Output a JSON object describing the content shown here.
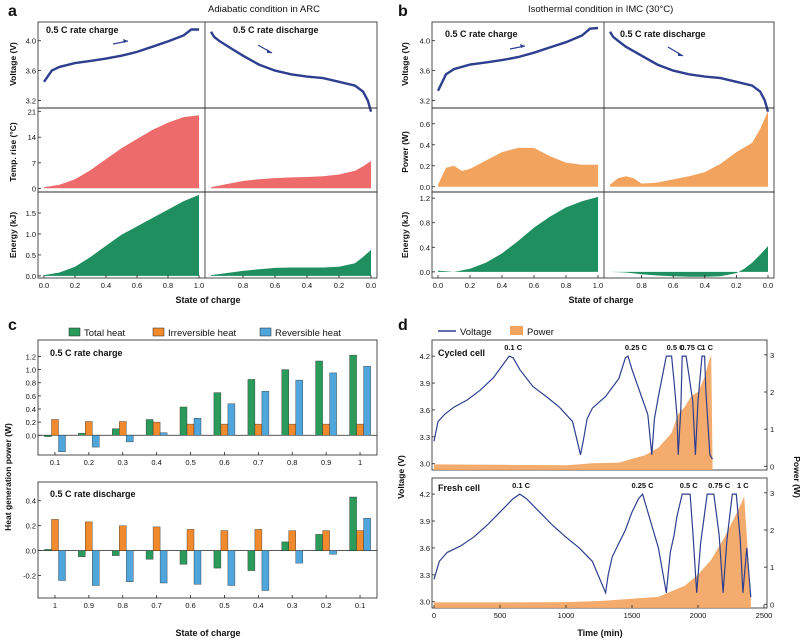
{
  "colors": {
    "voltage": "#2f3f8f",
    "temp": "#ee6b6b",
    "energy": "#1f8f5f",
    "power": "#f2a35e",
    "total": "#2a9b5b",
    "irrev": "#f08a2c",
    "rev": "#4ea6dc"
  },
  "panels": {
    "a": {
      "letter": "a",
      "title": "Adiabatic condition in ARC",
      "charge_label": "0.5 C rate charge",
      "discharge_label": "0.5 C rate discharge",
      "ylabels": [
        "Voltage (V)",
        "Temp. rise (°C)",
        "Energy (kJ)"
      ],
      "xlabel": "State of charge"
    },
    "b": {
      "letter": "b",
      "title": "Isothermal condition in IMC (30°C)",
      "charge_label": "0.5 C rate charge",
      "discharge_label": "0.5 C rate discharge",
      "ylabels": [
        "Voltage (V)",
        "Power (W)",
        "Energy (kJ)"
      ],
      "xlabel": "State of charge"
    },
    "c": {
      "letter": "c",
      "legend": [
        "Total heat",
        "Irreversible heat",
        "Reversible heat"
      ],
      "top_label": "0.5 C rate charge",
      "bottom_label": "0.5 C rate discharge",
      "ylabel": "Heat generation power (W)",
      "xlabel": "State of charge"
    },
    "d": {
      "letter": "d",
      "legend": [
        "Voltage",
        "Power"
      ],
      "top_label": "Cycled cell",
      "bottom_label": "Fresh cell",
      "ylabel_left": "Voltage (V)",
      "ylabel_right": "Power (W)",
      "xlabel": "Time (min)",
      "top_rate_labels": [
        "0.1 C",
        "0.25 C",
        "0.5 C",
        "0.75 C",
        "1 C"
      ],
      "bottom_rate_labels": [
        "0.1 C",
        "0.25 C",
        "0.5 C",
        "0.75 C",
        "1 C"
      ]
    }
  },
  "chart_data": [
    {
      "type": "area",
      "panel": "a",
      "title": "Adiabatic condition in ARC",
      "xlabel": "State of charge",
      "x_ticks_charge": [
        "0.0",
        "0.2",
        "0.4",
        "0.6",
        "0.8",
        "1.0"
      ],
      "x_ticks_discharge": [
        "0.8",
        "0.6",
        "0.4",
        "0.2",
        "0.0"
      ],
      "voltage": {
        "ylabel": "Voltage (V)",
        "ylim": [
          3.1,
          4.25
        ],
        "ticks": [
          "3.2",
          "3.6",
          "4.0"
        ],
        "charge": {
          "soc": [
            0,
            0.05,
            0.1,
            0.2,
            0.3,
            0.4,
            0.5,
            0.6,
            0.7,
            0.8,
            0.9,
            0.95,
            1.0
          ],
          "v": [
            3.45,
            3.6,
            3.65,
            3.7,
            3.73,
            3.76,
            3.8,
            3.85,
            3.92,
            3.99,
            4.07,
            4.15,
            4.15
          ]
        },
        "discharge": {
          "soc": [
            1.0,
            0.98,
            0.95,
            0.9,
            0.8,
            0.7,
            0.6,
            0.5,
            0.4,
            0.3,
            0.2,
            0.1,
            0.05,
            0.02,
            0.0
          ],
          "v": [
            4.12,
            4.05,
            4.0,
            3.93,
            3.8,
            3.68,
            3.6,
            3.55,
            3.52,
            3.5,
            3.45,
            3.4,
            3.32,
            3.2,
            3.05
          ]
        }
      },
      "temp_rise": {
        "ylabel": "Temp. rise (°C)",
        "ylim": [
          -1,
          22
        ],
        "ticks": [
          "0",
          "7",
          "14",
          "21"
        ],
        "charge": {
          "soc": [
            0,
            0.1,
            0.2,
            0.3,
            0.4,
            0.5,
            0.6,
            0.7,
            0.8,
            0.9,
            1.0
          ],
          "t": [
            0.3,
            1,
            2.5,
            5,
            8,
            11,
            13.5,
            16,
            18,
            19.5,
            20
          ]
        },
        "discharge": {
          "soc": [
            1.0,
            0.9,
            0.8,
            0.7,
            0.6,
            0.5,
            0.4,
            0.3,
            0.2,
            0.1,
            0.05,
            0.0
          ],
          "t": [
            0.3,
            1.2,
            2,
            2.5,
            2.8,
            3,
            3.1,
            3.3,
            3.8,
            4.8,
            6,
            7.5
          ]
        }
      },
      "energy": {
        "ylabel": "Energy (kJ)",
        "ylim": [
          -0.05,
          2.0
        ],
        "ticks": [
          "0.0",
          "0.5",
          "1.0",
          "1.5"
        ],
        "charge": {
          "soc": [
            0,
            0.1,
            0.2,
            0.3,
            0.4,
            0.5,
            0.6,
            0.7,
            0.8,
            0.9,
            1.0
          ],
          "e": [
            0.02,
            0.08,
            0.22,
            0.45,
            0.72,
            0.98,
            1.18,
            1.38,
            1.58,
            1.78,
            1.93
          ]
        },
        "discharge": {
          "soc": [
            1.0,
            0.9,
            0.8,
            0.7,
            0.6,
            0.5,
            0.4,
            0.3,
            0.2,
            0.1,
            0.05,
            0.0
          ],
          "e": [
            0.02,
            0.07,
            0.12,
            0.16,
            0.19,
            0.2,
            0.2,
            0.2,
            0.22,
            0.3,
            0.45,
            0.62
          ]
        }
      }
    },
    {
      "type": "area",
      "panel": "b",
      "title": "Isothermal condition in IMC (30°C)",
      "xlabel": "State of charge",
      "x_ticks_charge": [
        "0.0",
        "0.2",
        "0.4",
        "0.6",
        "0.8",
        "1.0"
      ],
      "x_ticks_discharge": [
        "0.8",
        "0.6",
        "0.4",
        "0.2",
        "0.0"
      ],
      "voltage": {
        "ylabel": "Voltage (V)",
        "ylim": [
          3.1,
          4.25
        ],
        "ticks": [
          "3.2",
          "3.6",
          "4.0"
        ],
        "charge": {
          "soc": [
            0,
            0.05,
            0.1,
            0.2,
            0.3,
            0.4,
            0.5,
            0.6,
            0.7,
            0.8,
            0.9,
            0.95,
            1.0
          ],
          "v": [
            3.33,
            3.55,
            3.62,
            3.68,
            3.71,
            3.74,
            3.78,
            3.84,
            3.91,
            3.98,
            4.07,
            4.16,
            4.17
          ]
        },
        "discharge": {
          "soc": [
            1.0,
            0.98,
            0.95,
            0.9,
            0.8,
            0.7,
            0.6,
            0.5,
            0.4,
            0.3,
            0.2,
            0.1,
            0.05,
            0.02,
            0.0
          ],
          "v": [
            4.12,
            4.05,
            4.0,
            3.92,
            3.8,
            3.68,
            3.6,
            3.55,
            3.52,
            3.5,
            3.45,
            3.4,
            3.32,
            3.2,
            3.05
          ]
        }
      },
      "power": {
        "ylabel": "Power (W)",
        "ylim": [
          -0.05,
          0.75
        ],
        "ticks": [
          "0.0",
          "0.2",
          "0.4",
          "0.6"
        ],
        "charge": {
          "soc": [
            0,
            0.05,
            0.1,
            0.15,
            0.2,
            0.3,
            0.4,
            0.5,
            0.6,
            0.7,
            0.8,
            0.9,
            1.0
          ],
          "p": [
            0.02,
            0.18,
            0.2,
            0.15,
            0.17,
            0.25,
            0.33,
            0.37,
            0.37,
            0.29,
            0.23,
            0.21,
            0.21
          ]
        },
        "discharge": {
          "soc": [
            1.0,
            0.95,
            0.9,
            0.85,
            0.8,
            0.7,
            0.6,
            0.5,
            0.4,
            0.3,
            0.2,
            0.1,
            0.05,
            0.0
          ],
          "p": [
            0.02,
            0.08,
            0.1,
            0.08,
            0.03,
            0.04,
            0.07,
            0.1,
            0.14,
            0.22,
            0.33,
            0.42,
            0.55,
            0.72
          ]
        }
      },
      "energy": {
        "ylabel": "Energy (kJ)",
        "ylim": [
          -0.1,
          1.3
        ],
        "ticks": [
          "0.0",
          "0.4",
          "0.8",
          "1.2"
        ],
        "charge": {
          "soc": [
            0,
            0.1,
            0.2,
            0.3,
            0.4,
            0.5,
            0.6,
            0.7,
            0.8,
            0.9,
            1.0
          ],
          "e": [
            0.02,
            0.0,
            0.05,
            0.15,
            0.3,
            0.5,
            0.72,
            0.9,
            1.05,
            1.15,
            1.22
          ]
        },
        "discharge": {
          "soc": [
            1.0,
            0.9,
            0.8,
            0.7,
            0.6,
            0.5,
            0.4,
            0.3,
            0.2,
            0.15,
            0.1,
            0.05,
            0.0
          ],
          "e": [
            0.0,
            -0.01,
            -0.04,
            -0.06,
            -0.07,
            -0.08,
            -0.08,
            -0.07,
            -0.02,
            0.05,
            0.15,
            0.28,
            0.42
          ]
        }
      }
    },
    {
      "type": "bar",
      "panel": "c",
      "ylabel": "Heat generation power (W)",
      "xlabel": "State of charge",
      "series_names": [
        "Total heat",
        "Irreversible heat",
        "Reversible heat"
      ],
      "charge": {
        "label": "0.5 C rate charge",
        "categories": [
          "0.1",
          "0.2",
          "0.3",
          "0.4",
          "0.5",
          "0.6",
          "0.7",
          "0.8",
          "0.9",
          "1"
        ],
        "ylim": [
          -0.3,
          1.45
        ],
        "ticks": [
          "0.0",
          "0.2",
          "0.4",
          "0.6",
          "0.8",
          "1.0",
          "1.2"
        ],
        "series": [
          {
            "name": "Total heat",
            "values": [
              -0.02,
              0.03,
              0.1,
              0.24,
              0.43,
              0.65,
              0.85,
              1.0,
              1.13,
              1.22
            ]
          },
          {
            "name": "Irreversible heat",
            "values": [
              0.24,
              0.21,
              0.21,
              0.2,
              0.17,
              0.17,
              0.17,
              0.17,
              0.17,
              0.17
            ]
          },
          {
            "name": "Reversible heat",
            "values": [
              -0.25,
              -0.18,
              -0.1,
              0.04,
              0.26,
              0.48,
              0.67,
              0.84,
              0.95,
              1.05
            ]
          }
        ]
      },
      "discharge": {
        "label": "0.5 C rate discharge",
        "categories": [
          "1",
          "0.9",
          "0.8",
          "0.7",
          "0.6",
          "0.5",
          "0.4",
          "0.3",
          "0.2",
          "0.1"
        ],
        "ylim": [
          -0.38,
          0.55
        ],
        "ticks": [
          "-0.2",
          "0.0",
          "0.2",
          "0.4"
        ],
        "series": [
          {
            "name": "Total heat",
            "values": [
              0.01,
              -0.05,
              -0.04,
              -0.07,
              -0.11,
              -0.14,
              -0.16,
              0.07,
              0.13,
              0.43
            ]
          },
          {
            "name": "Irreversible heat",
            "values": [
              0.25,
              0.23,
              0.2,
              0.19,
              0.17,
              0.16,
              0.17,
              0.16,
              0.16,
              0.16
            ]
          },
          {
            "name": "Reversible heat",
            "values": [
              -0.24,
              -0.28,
              -0.25,
              -0.26,
              -0.27,
              -0.28,
              -0.32,
              -0.1,
              -0.03,
              0.26
            ]
          }
        ]
      }
    },
    {
      "type": "line",
      "panel": "d",
      "xlabel": "Time (min)",
      "xlim": [
        0,
        2500
      ],
      "x_ticks": [
        "0",
        "500",
        "1000",
        "1500",
        "2000",
        "2500"
      ],
      "ylabel_left": "Voltage (V)",
      "ylabel_right": "Power (W)",
      "v_ticks": [
        "3.0",
        "3.3",
        "3.6",
        "3.9",
        "4.2"
      ],
      "p_ticks": [
        "0",
        "1",
        "2",
        "3"
      ],
      "series_names": [
        "Voltage",
        "Power"
      ],
      "cycled": {
        "label": "Cycled cell",
        "voltage": {
          "t": [
            0,
            30,
            80,
            150,
            250,
            350,
            450,
            520,
            570,
            600,
            650,
            750,
            850,
            950,
            1050,
            1110,
            1130,
            1160,
            1200,
            1300,
            1400,
            1450,
            1470,
            1500,
            1560,
            1620,
            1650,
            1670,
            1700,
            1760,
            1800,
            1820,
            1840,
            1850,
            1870,
            1880,
            1910,
            1960,
            1980,
            2000,
            2030,
            2050,
            2060,
            2090,
            2110
          ],
          "v": [
            3.25,
            3.47,
            3.55,
            3.63,
            3.71,
            3.82,
            3.96,
            4.1,
            4.2,
            4.18,
            4.05,
            3.86,
            3.75,
            3.63,
            3.47,
            3.1,
            3.25,
            3.5,
            3.62,
            3.75,
            3.95,
            4.18,
            4.2,
            4.05,
            3.8,
            3.55,
            3.1,
            3.5,
            3.75,
            4.2,
            4.2,
            3.9,
            3.55,
            3.1,
            3.6,
            4.2,
            4.2,
            3.7,
            3.1,
            3.7,
            4.2,
            4.2,
            3.8,
            3.1,
            3.05
          ]
        },
        "power": {
          "t": [
            0,
            500,
            1000,
            1100,
            1200,
            1400,
            1500,
            1600,
            1700,
            1800,
            1850,
            1900,
            1950,
            2000,
            2050,
            2080,
            2100,
            2110
          ],
          "p": [
            0.05,
            0.04,
            0.03,
            0.05,
            0.08,
            0.1,
            0.2,
            0.3,
            0.5,
            0.9,
            1.4,
            1.6,
            1.9,
            2.0,
            2.4,
            2.8,
            3.0,
            0.2
          ]
        }
      },
      "fresh": {
        "label": "Fresh cell",
        "voltage": {
          "t": [
            0,
            40,
            100,
            200,
            300,
            400,
            500,
            600,
            650,
            700,
            800,
            900,
            1000,
            1100,
            1200,
            1300,
            1320,
            1350,
            1400,
            1450,
            1500,
            1550,
            1580,
            1600,
            1650,
            1700,
            1760,
            1790,
            1820,
            1840,
            1880,
            1940,
            1960,
            1990,
            2020,
            2070,
            2120,
            2160,
            2190,
            2220,
            2260,
            2290,
            2320,
            2340,
            2370,
            2400
          ],
          "v": [
            3.25,
            3.45,
            3.55,
            3.62,
            3.72,
            3.85,
            4.0,
            4.15,
            4.2,
            4.15,
            4.0,
            3.85,
            3.72,
            3.6,
            3.45,
            3.1,
            3.3,
            3.5,
            3.65,
            3.8,
            4.0,
            4.15,
            4.2,
            4.1,
            3.85,
            3.6,
            3.1,
            3.55,
            3.75,
            3.95,
            4.2,
            4.2,
            3.8,
            3.1,
            3.65,
            4.2,
            4.2,
            3.75,
            3.1,
            3.7,
            4.2,
            4.2,
            3.7,
            3.1,
            3.6,
            3.05
          ]
        },
        "power": {
          "t": [
            0,
            500,
            1000,
            1200,
            1300,
            1500,
            1700,
            1800,
            1900,
            2000,
            2100,
            2200,
            2300,
            2350,
            2400
          ],
          "p": [
            0.05,
            0.05,
            0.06,
            0.08,
            0.1,
            0.15,
            0.2,
            0.35,
            0.5,
            0.8,
            1.2,
            1.8,
            2.5,
            2.9,
            0.2
          ]
        }
      }
    }
  ]
}
